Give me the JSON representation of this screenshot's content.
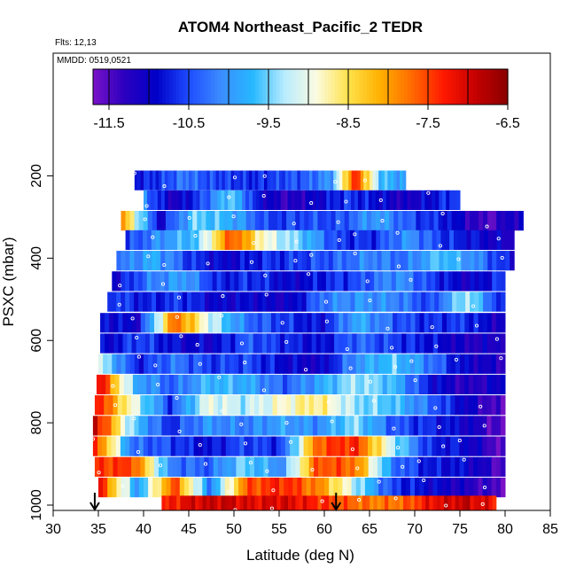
{
  "chart_data": {
    "type": "heatmap",
    "title": "ATOM4 Northeast_Pacific_2 TEDR",
    "notes": [
      "Flts: 12,13",
      "MMDD: 0519,0521"
    ],
    "xlabel": "Latitude (deg N)",
    "ylabel": "PSXC (mbar)",
    "xlim": [
      30,
      85
    ],
    "ylim": [
      1000,
      100
    ],
    "xticks": [
      30,
      35,
      40,
      45,
      50,
      55,
      60,
      65,
      70,
      75,
      80,
      85
    ],
    "yticks": [
      200,
      400,
      600,
      800,
      1000
    ],
    "colorbar": {
      "range": [
        -11.7,
        -6.5
      ],
      "ticks": [
        -11.5,
        -10.5,
        -9.5,
        -8.5,
        -7.5,
        -6.5
      ],
      "colors": [
        "#7a12c8",
        "#2a00c0",
        "#0000c8",
        "#1e4cff",
        "#3b8cff",
        "#26b8ff",
        "#b8ecff",
        "#fbfbe0",
        "#ffe24a",
        "#ffb000",
        "#ff6a00",
        "#ff1800",
        "#c40000",
        "#8a0000"
      ]
    },
    "markers_lat": [
      34.6,
      61.3
    ],
    "rows": [
      {
        "p": 210,
        "lat": [
          39,
          69
        ],
        "v": [
          -10.8,
          -10.6,
          -10.2,
          -10.5,
          -10.6,
          -10.7,
          -10.5,
          -10.4,
          -10.0,
          -7.3,
          -9.6,
          -10.0
        ]
      },
      {
        "p": 258,
        "lat": [
          40,
          75
        ],
        "v": [
          -10.2,
          -11.2,
          -10.5,
          -9.5,
          -10.9,
          -11.3,
          -11.0,
          -10.6,
          -10.8,
          -11.2,
          -10.9,
          -10.5
        ]
      },
      {
        "p": 308,
        "lat": [
          37.5,
          82
        ],
        "v": [
          -8.0,
          -11.0,
          -9.5,
          -9.8,
          -10.6,
          -10.5,
          -10.5,
          -9.9,
          -10.5,
          -10.8,
          -11.5,
          -11.0
        ]
      },
      {
        "p": 355,
        "lat": [
          38,
          81
        ],
        "v": [
          -10.6,
          -10.0,
          -9.6,
          -7.5,
          -9.0,
          -9.6,
          -10.6,
          -10.7,
          -10.0,
          -10.6,
          -10.9,
          -11.2
        ]
      },
      {
        "p": 405,
        "lat": [
          37,
          81
        ],
        "v": [
          -10.3,
          -9.8,
          -10.6,
          -11.0,
          -10.7,
          -10.6,
          -10.4,
          -10.1,
          -10.3,
          -9.6,
          -10.1,
          -10.9
        ]
      },
      {
        "p": 455,
        "lat": [
          36.5,
          80
        ],
        "v": [
          -11.0,
          -10.2,
          -9.9,
          -10.8,
          -10.6,
          -11.0,
          -10.7,
          -10.5,
          -10.0,
          -10.6,
          -11.1,
          -10.6
        ]
      },
      {
        "p": 505,
        "lat": [
          36,
          80
        ],
        "v": [
          -10.5,
          -10.8,
          -10.6,
          -11.0,
          -10.9,
          -11.1,
          -10.2,
          -10.0,
          -10.1,
          -10.6,
          -9.2,
          -10.9
        ]
      },
      {
        "p": 556,
        "lat": [
          35.2,
          80
        ],
        "v": [
          -10.8,
          -11.0,
          -7.6,
          -9.2,
          -10.3,
          -10.6,
          -10.9,
          -9.8,
          -10.4,
          -10.7,
          -10.6,
          -11.2
        ]
      },
      {
        "p": 606,
        "lat": [
          35.2,
          80
        ],
        "v": [
          -11.0,
          -10.5,
          -10.9,
          -11.0,
          -10.4,
          -10.7,
          -10.9,
          -10.3,
          -10.6,
          -10.8,
          -11.2,
          -11.1
        ]
      },
      {
        "p": 656,
        "lat": [
          35,
          80
        ],
        "v": [
          -9.2,
          -10.8,
          -10.2,
          -10.6,
          -10.5,
          -10.9,
          -11.1,
          -10.0,
          -9.6,
          -10.2,
          -11.0,
          -11.2
        ]
      },
      {
        "p": 706,
        "lat": [
          34.8,
          80
        ],
        "v": [
          -7.0,
          -9.8,
          -10.4,
          -9.7,
          -9.8,
          -10.4,
          -9.9,
          -9.3,
          -9.7,
          -10.8,
          -11.3,
          -11.0
        ]
      },
      {
        "p": 756,
        "lat": [
          34.6,
          80
        ],
        "v": [
          -7.2,
          -9.0,
          -10.6,
          -9.0,
          -9.3,
          -8.9,
          -8.6,
          -9.4,
          -9.6,
          -10.3,
          -11.0,
          -11.6
        ]
      },
      {
        "p": 806,
        "lat": [
          34.4,
          80
        ],
        "v": [
          -6.9,
          -9.5,
          -10.7,
          -10.0,
          -10.2,
          -9.9,
          -10.1,
          -9.4,
          -10.4,
          -10.7,
          -11.0,
          -11.6
        ]
      },
      {
        "p": 856,
        "lat": [
          34.4,
          80
        ],
        "v": [
          -7.3,
          -10.3,
          -10.5,
          -10.9,
          -10.5,
          -10.7,
          -7.6,
          -7.3,
          -9.2,
          -10.7,
          -10.9,
          -11.6
        ]
      },
      {
        "p": 906,
        "lat": [
          34.6,
          80
        ],
        "v": [
          -7.4,
          -7.5,
          -10.2,
          -10.4,
          -9.5,
          -10.1,
          -7.5,
          -7.7,
          -10.2,
          -10.8,
          -10.9,
          -11.5
        ]
      },
      {
        "p": 956,
        "lat": [
          35,
          80
        ],
        "v": [
          -7.3,
          -10.0,
          -7.5,
          -10.2,
          -7.6,
          -7.3,
          -7.9,
          -9.3,
          -10.6,
          -10.9,
          -11.2,
          -11.5
        ]
      },
      {
        "p": 1000,
        "lat": [
          42,
          79
        ],
        "v": [
          -7.4,
          -7.0,
          -6.9,
          -7.1,
          -7.0,
          -7.3,
          -7.6,
          -7.8,
          -7.7,
          -7.1,
          -6.9,
          -7.2
        ]
      }
    ]
  }
}
